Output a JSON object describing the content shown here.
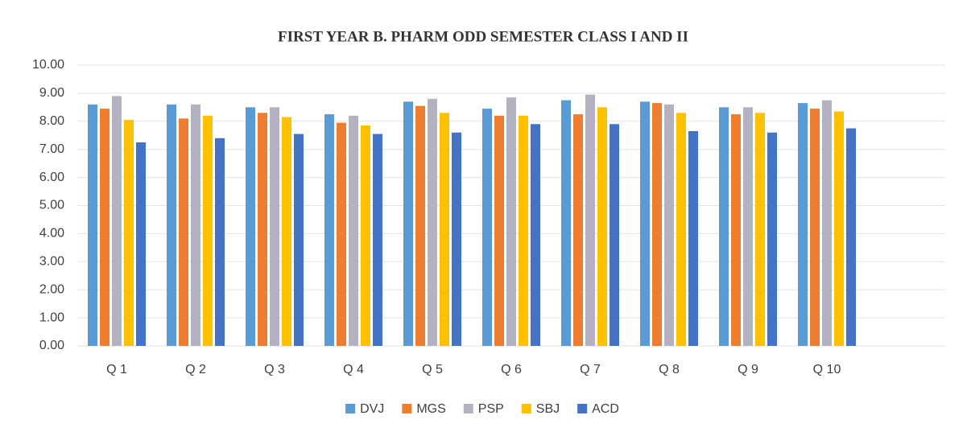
{
  "chart_data": {
    "type": "bar",
    "title": "FIRST YEAR B. PHARM ODD SEMESTER CLASS I AND II",
    "categories": [
      "Q 1",
      "Q 2",
      "Q 3",
      "Q 4",
      "Q 5",
      "Q 6",
      "Q 7",
      "Q 8",
      "Q 9",
      "Q 10",
      null
    ],
    "series": [
      {
        "name": "DVJ",
        "color": "#5b9bd5",
        "values": [
          8.6,
          8.6,
          8.5,
          8.25,
          8.7,
          8.45,
          8.75,
          8.7,
          8.5,
          8.65,
          null
        ]
      },
      {
        "name": "MGS",
        "color": "#ed7d31",
        "values": [
          8.45,
          8.1,
          8.3,
          7.95,
          8.55,
          8.2,
          8.25,
          8.65,
          8.25,
          8.45,
          null
        ]
      },
      {
        "name": "PSP",
        "color": "#b4b2c0",
        "values": [
          8.9,
          8.6,
          8.5,
          8.2,
          8.8,
          8.85,
          8.95,
          8.6,
          8.5,
          8.75,
          null
        ]
      },
      {
        "name": "SBJ",
        "color": "#ffc000",
        "values": [
          8.05,
          8.2,
          8.15,
          7.85,
          8.3,
          8.2,
          8.5,
          8.3,
          8.3,
          8.35,
          null
        ]
      },
      {
        "name": "ACD",
        "color": "#4472c4",
        "values": [
          7.25,
          7.4,
          7.55,
          7.55,
          7.6,
          7.9,
          7.9,
          7.65,
          7.6,
          7.75,
          null
        ]
      }
    ],
    "ylim": [
      0,
      10
    ],
    "yticks": [
      {
        "value": 0,
        "label": "0.00"
      },
      {
        "value": 1,
        "label": "1.00"
      },
      {
        "value": 2,
        "label": "2.00"
      },
      {
        "value": 3,
        "label": "3.00"
      },
      {
        "value": 4,
        "label": "4.00"
      },
      {
        "value": 5,
        "label": "5.00"
      },
      {
        "value": 6,
        "label": "6.00"
      },
      {
        "value": 7,
        "label": "7.00"
      },
      {
        "value": 8,
        "label": "8.00"
      },
      {
        "value": 9,
        "label": "9.00"
      },
      {
        "value": 10,
        "label": "10.00"
      }
    ],
    "grid": true,
    "legend": "bottom"
  }
}
